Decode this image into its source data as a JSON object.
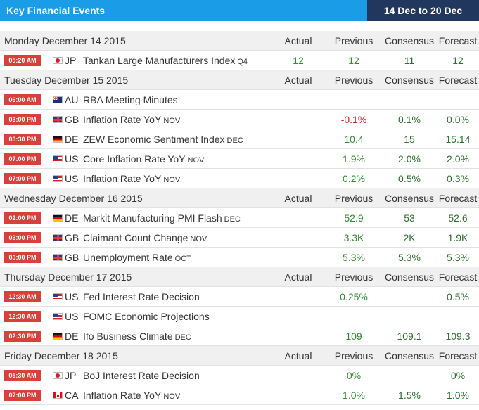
{
  "header": {
    "title": "Key Financial Events",
    "range": "14 Dec to 20 Dec"
  },
  "columns": {
    "actual": "Actual",
    "previous": "Previous",
    "consensus": "Consensus",
    "forecast": "Forecast"
  },
  "days": [
    {
      "label": "Monday December 14 2015",
      "events": [
        {
          "time": "05:20 AM",
          "flag": "jp",
          "cc": "JP",
          "name": "Tankan Large Manufacturers Index",
          "period": "Q4",
          "actual": "12",
          "previous": "12",
          "consensus": "11",
          "forecast": "12",
          "prev_color": "green"
        }
      ]
    },
    {
      "label": "Tuesday December 15 2015",
      "events": [
        {
          "time": "06:00 AM",
          "flag": "au",
          "cc": "AU",
          "name": "RBA Meeting Minutes",
          "period": "",
          "actual": "",
          "previous": "",
          "consensus": "",
          "forecast": "",
          "prev_color": "green"
        },
        {
          "time": "03:00 PM",
          "flag": "gb",
          "cc": "GB",
          "name": "Inflation Rate YoY",
          "period": "NOV",
          "actual": "",
          "previous": "-0.1%",
          "consensus": "0.1%",
          "forecast": "0.0%",
          "prev_color": "red"
        },
        {
          "time": "03:30 PM",
          "flag": "de",
          "cc": "DE",
          "name": "ZEW Economic Sentiment Index",
          "period": "DEC",
          "actual": "",
          "previous": "10.4",
          "consensus": "15",
          "forecast": "15.14",
          "prev_color": "green"
        },
        {
          "time": "07:00 PM",
          "flag": "us",
          "cc": "US",
          "name": "Core Inflation Rate YoY",
          "period": "NOV",
          "actual": "",
          "previous": "1.9%",
          "consensus": "2.0%",
          "forecast": "2.0%",
          "prev_color": "green"
        },
        {
          "time": "07:00 PM",
          "flag": "us",
          "cc": "US",
          "name": "Inflation Rate YoY",
          "period": "NOV",
          "actual": "",
          "previous": "0.2%",
          "consensus": "0.5%",
          "forecast": "0.3%",
          "prev_color": "green"
        }
      ]
    },
    {
      "label": "Wednesday December 16 2015",
      "events": [
        {
          "time": "02:00 PM",
          "flag": "de",
          "cc": "DE",
          "name": "Markit Manufacturing PMI Flash",
          "period": "DEC",
          "actual": "",
          "previous": "52.9",
          "consensus": "53",
          "forecast": "52.6",
          "prev_color": "green"
        },
        {
          "time": "03:00 PM",
          "flag": "gb",
          "cc": "GB",
          "name": "Claimant Count Change",
          "period": "NOV",
          "actual": "",
          "previous": "3.3K",
          "consensus": "2K",
          "forecast": "1.9K",
          "prev_color": "green"
        },
        {
          "time": "03:00 PM",
          "flag": "gb",
          "cc": "GB",
          "name": "Unemployment Rate",
          "period": "OCT",
          "actual": "",
          "previous": "5.3%",
          "consensus": "5.3%",
          "forecast": "5.3%",
          "prev_color": "green"
        }
      ]
    },
    {
      "label": "Thursday December 17 2015",
      "events": [
        {
          "time": "12:30 AM",
          "flag": "us",
          "cc": "US",
          "name": "Fed Interest Rate Decision",
          "period": "",
          "actual": "",
          "previous": "0.25%",
          "consensus": "",
          "forecast": "0.5%",
          "prev_color": "green"
        },
        {
          "time": "12:30 AM",
          "flag": "us",
          "cc": "US",
          "name": "FOMC Economic Projections",
          "period": "",
          "actual": "",
          "previous": "",
          "consensus": "",
          "forecast": "",
          "prev_color": "green"
        },
        {
          "time": "02:30 PM",
          "flag": "de",
          "cc": "DE",
          "name": "Ifo Business Climate",
          "period": "DEC",
          "actual": "",
          "previous": "109",
          "consensus": "109.1",
          "forecast": "109.3",
          "prev_color": "green"
        }
      ]
    },
    {
      "label": "Friday December 18 2015",
      "events": [
        {
          "time": "05:30 AM",
          "flag": "jp",
          "cc": "JP",
          "name": "BoJ Interest Rate Decision",
          "period": "",
          "actual": "",
          "previous": "0%",
          "consensus": "",
          "forecast": "0%",
          "prev_color": "green"
        },
        {
          "time": "07:00 PM",
          "flag": "ca",
          "cc": "CA",
          "name": "Inflation Rate YoY",
          "period": "NOV",
          "actual": "",
          "previous": "1.0%",
          "consensus": "1.5%",
          "forecast": "1.0%",
          "prev_color": "green"
        }
      ]
    }
  ]
}
